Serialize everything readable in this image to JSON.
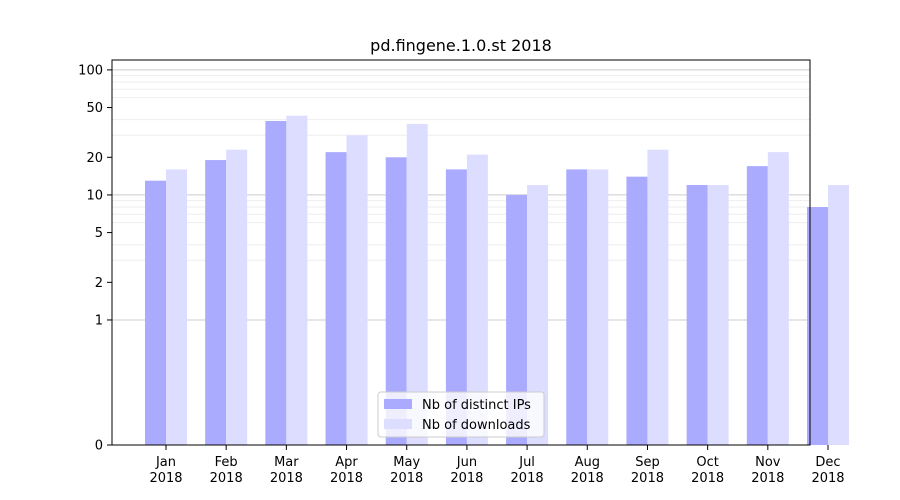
{
  "chart_data": {
    "type": "bar",
    "title": "pd.fingene.1.0.st 2018",
    "xlabel": "",
    "ylabel": "",
    "yscale": "symlog",
    "ylim": [
      0,
      120
    ],
    "y_ticks": [
      0,
      1,
      2,
      5,
      10,
      20,
      50,
      100
    ],
    "grid": "y",
    "legend_position": "bottom-center",
    "categories": [
      "Jan\n2018",
      "Feb\n2018",
      "Mar\n2018",
      "Apr\n2018",
      "May\n2018",
      "Jun\n2018",
      "Jul\n2018",
      "Aug\n2018",
      "Sep\n2018",
      "Oct\n2018",
      "Nov\n2018",
      "Dec\n2018"
    ],
    "series": [
      {
        "name": "Nb of distinct IPs",
        "color": "#aaaaff",
        "values": [
          13,
          19,
          39,
          22,
          20,
          16,
          10,
          16,
          14,
          12,
          17,
          8
        ]
      },
      {
        "name": "Nb of downloads",
        "color": "#ddddff",
        "values": [
          16,
          23,
          43,
          30,
          37,
          21,
          12,
          16,
          23,
          12,
          22,
          12
        ]
      }
    ]
  }
}
